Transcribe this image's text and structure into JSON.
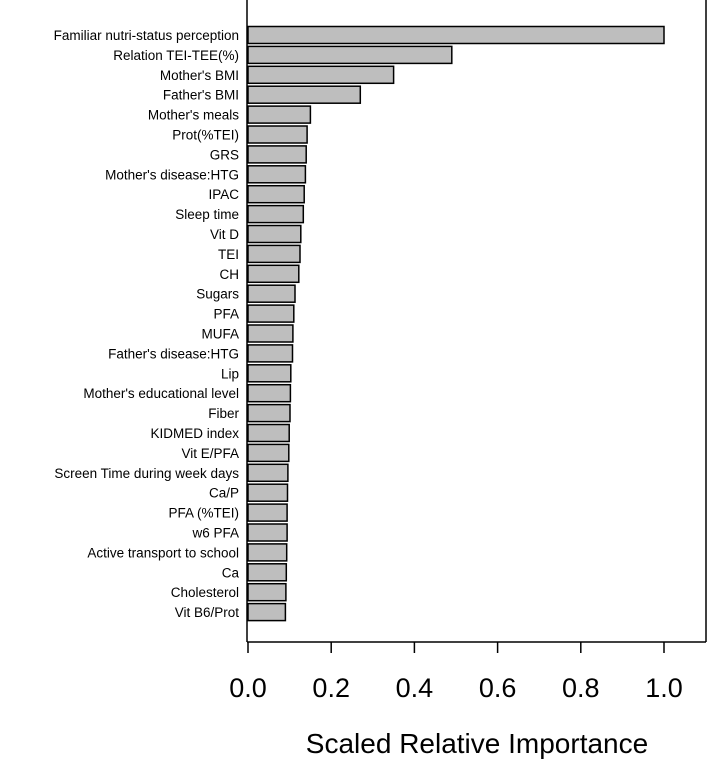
{
  "chart_data": {
    "type": "bar",
    "orientation": "horizontal",
    "xlabel": "Scaled Relative Importance",
    "ylabel": "",
    "title": "",
    "xlim": [
      0.0,
      1.0
    ],
    "x_ticks": [
      "0.0",
      "0.2",
      "0.4",
      "0.6",
      "0.8",
      "1.0"
    ],
    "grid": false,
    "bar_color": "#bebebe",
    "bar_edge_color": "#000000",
    "categories": [
      "Familiar nutri-status perception",
      "Relation TEI-TEE(%)",
      "Mother's BMI",
      "Father's BMI",
      "Mother's meals",
      "Prot(%TEI)",
      "GRS",
      "Mother's disease:HTG",
      "IPAC",
      "Sleep time",
      "Vit D",
      "TEI",
      "CH",
      "Sugars",
      "PFA",
      "MUFA",
      "Father's disease:HTG",
      "Lip",
      "Mother's educational level",
      "Fiber",
      "KIDMED index",
      "Vit E/PFA",
      "Screen Time during week days",
      "Ca/P",
      "PFA (%TEI)",
      "w6 PFA",
      "Active transport to school",
      "Ca",
      "Cholesterol",
      "Vit B6/Prot"
    ],
    "values": [
      1.0,
      0.49,
      0.35,
      0.27,
      0.15,
      0.142,
      0.14,
      0.138,
      0.135,
      0.133,
      0.127,
      0.125,
      0.122,
      0.113,
      0.11,
      0.108,
      0.107,
      0.103,
      0.102,
      0.101,
      0.099,
      0.098,
      0.096,
      0.095,
      0.094,
      0.094,
      0.093,
      0.092,
      0.091,
      0.09
    ]
  }
}
